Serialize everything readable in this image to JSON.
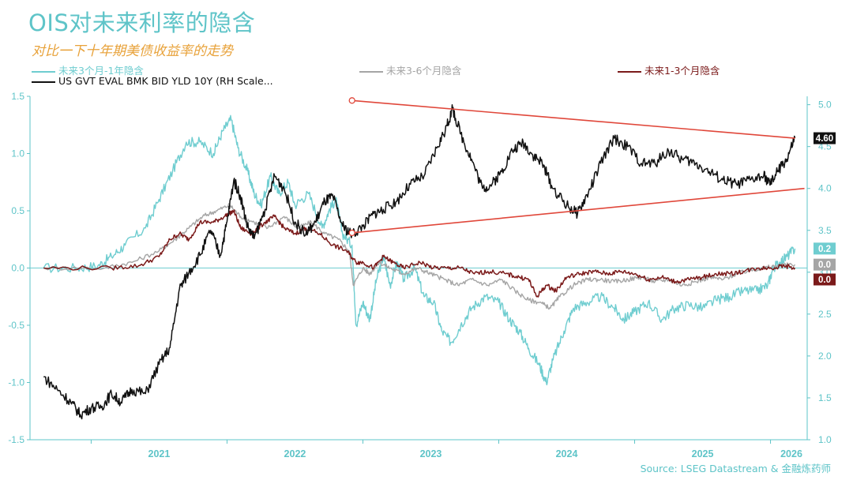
{
  "title": "OIS对未来利率的隐含",
  "subtitle": "对比一下十年期美债收益率的走势",
  "source": "Source: LSEG Datastream & 金融炼药师",
  "colors": {
    "teal": "#6fcdd0",
    "gray": "#a5a5a5",
    "maroon": "#7b1a1a",
    "black": "#111111",
    "red": "#e0473a",
    "axis": "#5ec4c8"
  },
  "chart_data": {
    "type": "line",
    "legend": [
      {
        "label": "未来3个月-1年隐含",
        "color": "#6fcdd0"
      },
      {
        "label": "未来3-6个月隐含",
        "color": "#a5a5a5"
      },
      {
        "label": "未来1-3个月隐含",
        "color": "#7b1a1a"
      },
      {
        "label": "US GVT EVAL BMK BID YLD 10Y (RH Scale...",
        "color": "#111111"
      }
    ],
    "x_ticks": [
      "2021",
      "2022",
      "2023",
      "2024",
      "2025",
      "2026"
    ],
    "x_range": [
      2020.55,
      2026.27
    ],
    "left_axis": {
      "ylim": [
        -1.5,
        1.5
      ],
      "ticks": [
        "1.5",
        "1.0",
        "0.5",
        "0.0",
        "-0.5",
        "-1.0",
        "-1.5"
      ]
    },
    "right_axis": {
      "ylim": [
        1.0,
        5.1
      ],
      "ticks": [
        "5.0",
        "4.5",
        "4.0",
        "3.5",
        "3.0",
        "2.5",
        "2.0",
        "1.5",
        "1.0"
      ]
    },
    "end_labels": [
      {
        "text": "4.60",
        "color": "#111111",
        "axis": "right",
        "value": 4.6
      },
      {
        "text": "0.2",
        "color": "#6fcdd0",
        "axis": "left",
        "value": 0.17
      },
      {
        "text": "0.0",
        "color": "#a5a5a5",
        "axis": "left",
        "value": 0.03
      },
      {
        "text": "0.0",
        "color": "#7b1a1a",
        "axis": "left",
        "value": -0.1
      }
    ],
    "series": [
      {
        "name": "未来3个月-1年隐含",
        "axis": "left",
        "color": "#6fcdd0",
        "points": [
          [
            2020.65,
            0.0
          ],
          [
            2020.9,
            0.0
          ],
          [
            2021.05,
            0.02
          ],
          [
            2021.15,
            0.1
          ],
          [
            2021.25,
            0.2
          ],
          [
            2021.4,
            0.35
          ],
          [
            2021.5,
            0.6
          ],
          [
            2021.6,
            0.85
          ],
          [
            2021.7,
            1.1
          ],
          [
            2021.8,
            1.1
          ],
          [
            2021.9,
            1.0
          ],
          [
            2021.97,
            1.2
          ],
          [
            2022.03,
            1.3
          ],
          [
            2022.08,
            1.05
          ],
          [
            2022.15,
            0.85
          ],
          [
            2022.2,
            0.65
          ],
          [
            2022.25,
            0.55
          ],
          [
            2022.32,
            0.8
          ],
          [
            2022.38,
            0.65
          ],
          [
            2022.45,
            0.75
          ],
          [
            2022.5,
            0.55
          ],
          [
            2022.6,
            0.65
          ],
          [
            2022.7,
            0.35
          ],
          [
            2022.75,
            0.5
          ],
          [
            2022.8,
            0.6
          ],
          [
            2022.85,
            0.3
          ],
          [
            2022.92,
            0.2
          ],
          [
            2022.95,
            -0.5
          ],
          [
            2023.0,
            -0.3
          ],
          [
            2023.05,
            -0.45
          ],
          [
            2023.1,
            -0.1
          ],
          [
            2023.15,
            0.1
          ],
          [
            2023.2,
            -0.15
          ],
          [
            2023.25,
            0.05
          ],
          [
            2023.3,
            -0.1
          ],
          [
            2023.38,
            0.0
          ],
          [
            2023.45,
            -0.25
          ],
          [
            2023.52,
            -0.3
          ],
          [
            2023.58,
            -0.55
          ],
          [
            2023.65,
            -0.65
          ],
          [
            2023.72,
            -0.5
          ],
          [
            2023.8,
            -0.35
          ],
          [
            2023.9,
            -0.25
          ],
          [
            2024.0,
            -0.3
          ],
          [
            2024.08,
            -0.45
          ],
          [
            2024.15,
            -0.55
          ],
          [
            2024.22,
            -0.7
          ],
          [
            2024.3,
            -0.85
          ],
          [
            2024.35,
            -1.0
          ],
          [
            2024.4,
            -0.8
          ],
          [
            2024.48,
            -0.55
          ],
          [
            2024.55,
            -0.35
          ],
          [
            2024.65,
            -0.3
          ],
          [
            2024.75,
            -0.25
          ],
          [
            2024.85,
            -0.35
          ],
          [
            2024.92,
            -0.45
          ],
          [
            2025.0,
            -0.38
          ],
          [
            2025.1,
            -0.3
          ],
          [
            2025.2,
            -0.45
          ],
          [
            2025.3,
            -0.35
          ],
          [
            2025.4,
            -0.32
          ],
          [
            2025.5,
            -0.35
          ],
          [
            2025.6,
            -0.28
          ],
          [
            2025.7,
            -0.25
          ],
          [
            2025.8,
            -0.2
          ],
          [
            2025.9,
            -0.2
          ],
          [
            2025.98,
            -0.15
          ],
          [
            2026.02,
            0.0
          ],
          [
            2026.07,
            0.05
          ],
          [
            2026.12,
            0.1
          ],
          [
            2026.18,
            0.17
          ]
        ]
      },
      {
        "name": "未来3-6个月隐含",
        "axis": "left",
        "color": "#a5a5a5",
        "points": [
          [
            2020.65,
            0.0
          ],
          [
            2021.1,
            0.0
          ],
          [
            2021.3,
            0.05
          ],
          [
            2021.5,
            0.15
          ],
          [
            2021.62,
            0.25
          ],
          [
            2021.72,
            0.35
          ],
          [
            2021.82,
            0.45
          ],
          [
            2021.92,
            0.5
          ],
          [
            2022.02,
            0.55
          ],
          [
            2022.1,
            0.45
          ],
          [
            2022.2,
            0.4
          ],
          [
            2022.3,
            0.35
          ],
          [
            2022.42,
            0.45
          ],
          [
            2022.52,
            0.35
          ],
          [
            2022.62,
            0.4
          ],
          [
            2022.72,
            0.3
          ],
          [
            2022.82,
            0.25
          ],
          [
            2022.9,
            0.15
          ],
          [
            2022.93,
            -0.15
          ],
          [
            2023.0,
            0.0
          ],
          [
            2023.05,
            -0.05
          ],
          [
            2023.12,
            0.05
          ],
          [
            2023.2,
            0.0
          ],
          [
            2023.3,
            -0.05
          ],
          [
            2023.4,
            0.0
          ],
          [
            2023.5,
            -0.05
          ],
          [
            2023.6,
            -0.1
          ],
          [
            2023.7,
            -0.15
          ],
          [
            2023.8,
            -0.1
          ],
          [
            2023.92,
            -0.15
          ],
          [
            2024.02,
            -0.1
          ],
          [
            2024.12,
            -0.2
          ],
          [
            2024.22,
            -0.28
          ],
          [
            2024.3,
            -0.3
          ],
          [
            2024.38,
            -0.35
          ],
          [
            2024.45,
            -0.25
          ],
          [
            2024.55,
            -0.15
          ],
          [
            2024.65,
            -0.1
          ],
          [
            2024.75,
            -0.1
          ],
          [
            2024.85,
            -0.12
          ],
          [
            2024.95,
            -0.1
          ],
          [
            2025.05,
            -0.08
          ],
          [
            2025.15,
            -0.12
          ],
          [
            2025.25,
            -0.1
          ],
          [
            2025.35,
            -0.15
          ],
          [
            2025.45,
            -0.12
          ],
          [
            2025.55,
            -0.08
          ],
          [
            2025.65,
            -0.1
          ],
          [
            2025.75,
            -0.05
          ],
          [
            2025.85,
            -0.02
          ],
          [
            2025.95,
            0.0
          ],
          [
            2026.05,
            0.02
          ],
          [
            2026.18,
            0.03
          ]
        ]
      },
      {
        "name": "未来1-3个月隐含",
        "axis": "left",
        "color": "#7b1a1a",
        "points": [
          [
            2020.65,
            0.0
          ],
          [
            2021.15,
            0.0
          ],
          [
            2021.35,
            0.02
          ],
          [
            2021.5,
            0.1
          ],
          [
            2021.58,
            0.25
          ],
          [
            2021.65,
            0.3
          ],
          [
            2021.72,
            0.25
          ],
          [
            2021.8,
            0.4
          ],
          [
            2021.9,
            0.4
          ],
          [
            2021.98,
            0.45
          ],
          [
            2022.05,
            0.5
          ],
          [
            2022.1,
            0.35
          ],
          [
            2022.18,
            0.3
          ],
          [
            2022.28,
            0.4
          ],
          [
            2022.35,
            0.45
          ],
          [
            2022.42,
            0.35
          ],
          [
            2022.5,
            0.3
          ],
          [
            2022.58,
            0.35
          ],
          [
            2022.68,
            0.3
          ],
          [
            2022.78,
            0.2
          ],
          [
            2022.88,
            0.15
          ],
          [
            2022.95,
            0.05
          ],
          [
            2023.0,
            0.05
          ],
          [
            2023.08,
            0.0
          ],
          [
            2023.15,
            0.1
          ],
          [
            2023.22,
            0.05
          ],
          [
            2023.3,
            0.0
          ],
          [
            2023.42,
            0.05
          ],
          [
            2023.52,
            0.0
          ],
          [
            2023.62,
            0.0
          ],
          [
            2023.72,
            0.0
          ],
          [
            2023.82,
            -0.05
          ],
          [
            2023.92,
            -0.03
          ],
          [
            2024.05,
            -0.05
          ],
          [
            2024.15,
            -0.08
          ],
          [
            2024.22,
            -0.1
          ],
          [
            2024.28,
            -0.25
          ],
          [
            2024.35,
            -0.15
          ],
          [
            2024.42,
            -0.2
          ],
          [
            2024.5,
            -0.08
          ],
          [
            2024.6,
            -0.05
          ],
          [
            2024.7,
            -0.03
          ],
          [
            2024.8,
            -0.05
          ],
          [
            2024.9,
            -0.03
          ],
          [
            2025.0,
            -0.05
          ],
          [
            2025.1,
            -0.1
          ],
          [
            2025.2,
            -0.08
          ],
          [
            2025.3,
            -0.12
          ],
          [
            2025.4,
            -0.1
          ],
          [
            2025.5,
            -0.08
          ],
          [
            2025.6,
            -0.05
          ],
          [
            2025.7,
            -0.05
          ],
          [
            2025.8,
            -0.03
          ],
          [
            2025.9,
            0.0
          ],
          [
            2026.0,
            0.0
          ],
          [
            2026.1,
            0.02
          ],
          [
            2026.18,
            0.0
          ]
        ]
      },
      {
        "name": "US GVT EVAL BMK BID YLD 10Y (RH Scale...",
        "axis": "right",
        "color": "#111111",
        "points": [
          [
            2020.65,
            1.75
          ],
          [
            2020.75,
            1.6
          ],
          [
            2020.85,
            1.45
          ],
          [
            2020.92,
            1.3
          ],
          [
            2021.0,
            1.38
          ],
          [
            2021.08,
            1.4
          ],
          [
            2021.15,
            1.55
          ],
          [
            2021.22,
            1.45
          ],
          [
            2021.3,
            1.6
          ],
          [
            2021.4,
            1.55
          ],
          [
            2021.5,
            1.9
          ],
          [
            2021.58,
            2.1
          ],
          [
            2021.65,
            2.8
          ],
          [
            2021.72,
            3.0
          ],
          [
            2021.8,
            3.2
          ],
          [
            2021.88,
            3.5
          ],
          [
            2021.95,
            3.2
          ],
          [
            2022.0,
            3.6
          ],
          [
            2022.05,
            4.1
          ],
          [
            2022.1,
            3.9
          ],
          [
            2022.15,
            3.55
          ],
          [
            2022.2,
            3.4
          ],
          [
            2022.28,
            3.75
          ],
          [
            2022.35,
            4.15
          ],
          [
            2022.42,
            4.0
          ],
          [
            2022.5,
            3.6
          ],
          [
            2022.58,
            3.45
          ],
          [
            2022.65,
            3.6
          ],
          [
            2022.72,
            3.85
          ],
          [
            2022.78,
            3.9
          ],
          [
            2022.85,
            3.55
          ],
          [
            2022.92,
            3.45
          ],
          [
            2023.0,
            3.55
          ],
          [
            2023.08,
            3.7
          ],
          [
            2023.15,
            3.75
          ],
          [
            2023.25,
            3.85
          ],
          [
            2023.35,
            4.05
          ],
          [
            2023.45,
            4.15
          ],
          [
            2023.55,
            4.5
          ],
          [
            2023.62,
            4.75
          ],
          [
            2023.66,
            4.95
          ],
          [
            2023.72,
            4.65
          ],
          [
            2023.8,
            4.35
          ],
          [
            2023.88,
            4.0
          ],
          [
            2023.95,
            4.05
          ],
          [
            2024.02,
            4.2
          ],
          [
            2024.1,
            4.45
          ],
          [
            2024.18,
            4.55
          ],
          [
            2024.25,
            4.4
          ],
          [
            2024.32,
            4.3
          ],
          [
            2024.4,
            4.0
          ],
          [
            2024.5,
            3.8
          ],
          [
            2024.58,
            3.7
          ],
          [
            2024.66,
            3.95
          ],
          [
            2024.75,
            4.3
          ],
          [
            2024.85,
            4.6
          ],
          [
            2024.95,
            4.5
          ],
          [
            2025.05,
            4.3
          ],
          [
            2025.15,
            4.3
          ],
          [
            2025.25,
            4.45
          ],
          [
            2025.35,
            4.35
          ],
          [
            2025.45,
            4.3
          ],
          [
            2025.55,
            4.2
          ],
          [
            2025.65,
            4.1
          ],
          [
            2025.75,
            4.05
          ],
          [
            2025.85,
            4.1
          ],
          [
            2025.95,
            4.15
          ],
          [
            2026.0,
            4.05
          ],
          [
            2026.05,
            4.2
          ],
          [
            2026.12,
            4.35
          ],
          [
            2026.18,
            4.6
          ]
        ]
      }
    ],
    "trendlines": [
      {
        "axis": "right",
        "from": [
          2022.92,
          5.05
        ],
        "to": [
          2026.18,
          4.6
        ]
      },
      {
        "axis": "right",
        "from": [
          2022.92,
          3.47
        ],
        "to": [
          2026.25,
          4.0
        ]
      }
    ]
  }
}
